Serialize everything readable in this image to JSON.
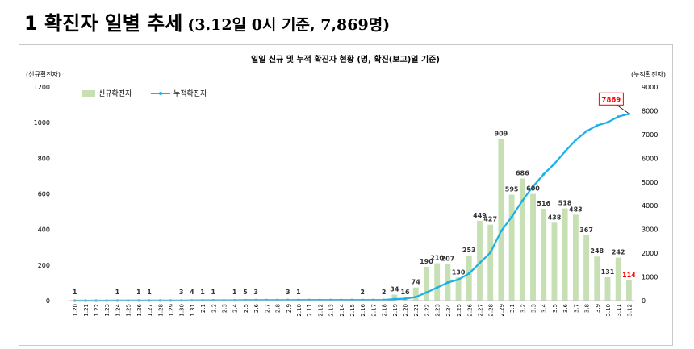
{
  "page": {
    "heading_main": "1 확진자 일별 추세",
    "heading_sub": "(3.12일 0시 기준, 7,869명)"
  },
  "chart_data": {
    "type": "bar+line",
    "title": "일일 신규 및 누적 확진자 현황 (명, 확진(보고)일 기준)",
    "left_axis_label": "(신규확진자)",
    "right_axis_label": "(누적확진자)",
    "ylim_left": [
      0,
      1200
    ],
    "yticks_left": [
      0,
      200,
      400,
      600,
      800,
      1000,
      1200
    ],
    "ylim_right": [
      0,
      9000
    ],
    "yticks_right": [
      0,
      1000,
      2000,
      3000,
      4000,
      5000,
      6000,
      7000,
      8000,
      9000
    ],
    "legend": {
      "bar": "신규확진자",
      "line": "누적확진자",
      "position": "top-left"
    },
    "colors": {
      "bar": "#c6e0b4",
      "line": "#1ab0e8",
      "label_last": "#ff0000",
      "callout_border": "#ff0000"
    },
    "categories": [
      "1.20",
      "1.21",
      "1.22",
      "1.23",
      "1.24",
      "1.25",
      "1.26",
      "1.27",
      "1.28",
      "1.29",
      "1.30",
      "1.31",
      "2.1",
      "2.2",
      "2.3",
      "2.4",
      "2.5",
      "2.6",
      "2.7",
      "2.8",
      "2.9",
      "2.10",
      "2.11",
      "2.12",
      "2.13",
      "2.14",
      "2.15",
      "2.16",
      "2.17",
      "2.18",
      "2.19",
      "2.20",
      "2.21",
      "2.22",
      "2.23",
      "2.24",
      "2.25",
      "2.26",
      "2.27",
      "2.28",
      "2.29",
      "3.1",
      "3.2",
      "3.3",
      "3.4",
      "3.5",
      "3.6",
      "3.7",
      "3.8",
      "3.9",
      "3.10",
      "3.11",
      "3.12"
    ],
    "new_cases": [
      1,
      0,
      0,
      0,
      1,
      0,
      1,
      1,
      0,
      0,
      3,
      4,
      1,
      1,
      0,
      1,
      5,
      3,
      0,
      0,
      3,
      1,
      0,
      0,
      0,
      0,
      0,
      2,
      0,
      2,
      34,
      16,
      74,
      190,
      210,
      207,
      130,
      253,
      449,
      427,
      909,
      595,
      686,
      600,
      516,
      438,
      518,
      483,
      367,
      248,
      131,
      242,
      114
    ],
    "new_case_labels": [
      "1",
      "",
      "",
      "",
      "1",
      "",
      "1",
      "1",
      "",
      "",
      "3",
      "4",
      "1",
      "1",
      "",
      "1",
      "5",
      "3",
      "",
      "",
      "3",
      "1",
      "",
      "",
      "",
      "",
      "",
      "2",
      "",
      "2",
      "34",
      "16",
      "74",
      "190",
      "210",
      "207",
      "130",
      "253",
      "449",
      "427",
      "909",
      "595",
      "686",
      "600",
      "516",
      "438",
      "518",
      "483",
      "367",
      "248",
      "131",
      "242",
      "114"
    ],
    "cumulative": [
      1,
      1,
      1,
      1,
      2,
      2,
      3,
      4,
      4,
      4,
      7,
      11,
      12,
      13,
      13,
      14,
      19,
      22,
      22,
      22,
      25,
      26,
      26,
      26,
      26,
      26,
      26,
      28,
      28,
      30,
      64,
      80,
      154,
      344,
      554,
      761,
      891,
      1144,
      1593,
      2020,
      2929,
      3524,
      4210,
      4810,
      5326,
      5764,
      6282,
      6765,
      7132,
      7380,
      7511,
      7753,
      7869
    ],
    "callout": "7869"
  }
}
